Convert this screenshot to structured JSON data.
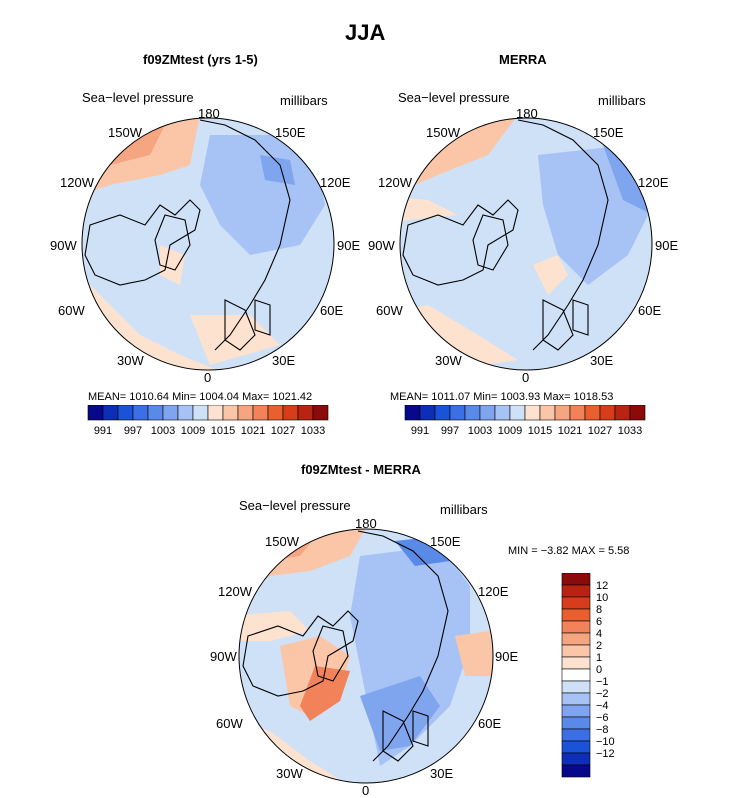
{
  "page_title": "JJA",
  "colors": {
    "land": "#000000",
    "ocean_bg": "#cfe1f7",
    "h_cbar": [
      "#08088a",
      "#0d2fb8",
      "#1a52d8",
      "#3b6fe3",
      "#5a8ae8",
      "#7fa5ef",
      "#a7c2f5",
      "#cfe1f7",
      "#fde2cf",
      "#fbc6a8",
      "#f6a581",
      "#f18259",
      "#e8602f",
      "#d73d1a",
      "#b82411",
      "#8b0a0a"
    ],
    "v_cbar": [
      "#8b0a0a",
      "#b82411",
      "#d73d1a",
      "#e8602f",
      "#f18259",
      "#f6a581",
      "#fbc6a8",
      "#fde2cf",
      "#ffffff",
      "#cfe1f7",
      "#a7c2f5",
      "#7fa5ef",
      "#5a8ae8",
      "#3b6fe3",
      "#1a52d8",
      "#0d2fb8",
      "#08088a"
    ]
  },
  "panels": [
    {
      "title": "f09ZMtest (yrs 1-5)",
      "variable": "Sea−level pressure",
      "units": "millibars",
      "lon_labels": {
        "top": "180",
        "tl": "150W",
        "tr": "150E",
        "ul": "120W",
        "ur": "120E",
        "l": "90W",
        "r": "90E",
        "ll": "60W",
        "lr": "60E",
        "bl": "30W",
        "br": "30E",
        "bottom": "0"
      },
      "stats": "MEAN= 1010.64   Min= 1004.04   Max= 1021.42",
      "cbar_labels": [
        "991",
        "997",
        "1003",
        "1009",
        "1015",
        "1021",
        "1027",
        "1033"
      ]
    },
    {
      "title": "MERRA",
      "variable": "Sea−level pressure",
      "units": "millibars",
      "lon_labels": {
        "top": "180",
        "tl": "150W",
        "tr": "150E",
        "ul": "120W",
        "ur": "120E",
        "l": "90W",
        "r": "90E",
        "ll": "60W",
        "lr": "60E",
        "bl": "30W",
        "br": "30E",
        "bottom": "0"
      },
      "stats": "MEAN= 1011.07   Min= 1003.93   Max= 1018.53",
      "cbar_labels": [
        "991",
        "997",
        "1003",
        "1009",
        "1015",
        "1021",
        "1027",
        "1033"
      ]
    },
    {
      "title": "f09ZMtest - MERRA",
      "variable": "Sea−level pressure",
      "units": "millibars",
      "lon_labels": {
        "top": "180",
        "tl": "150W",
        "tr": "150E",
        "ul": "120W",
        "ur": "120E",
        "l": "90W",
        "r": "90E",
        "ll": "60W",
        "lr": "60E",
        "bl": "30W",
        "br": "30E",
        "bottom": "0"
      },
      "stats": "MIN =   −3.82  MAX =    5.58",
      "cbar_labels": [
        "12",
        "10",
        "8",
        "6",
        "4",
        "2",
        "1",
        "0",
        "−1",
        "−2",
        "−4",
        "−6",
        "−8",
        "−10",
        "−12"
      ]
    }
  ],
  "chart_data": [
    {
      "type": "heatmap",
      "title": "f09ZMtest (yrs 1-5)",
      "subtitle": "Sea−level pressure",
      "units": "millibars",
      "projection": "north polar stereographic",
      "mean": 1010.64,
      "min": 1004.04,
      "max": 1021.42,
      "contour_levels": [
        991,
        994,
        997,
        1000,
        1003,
        1006,
        1009,
        1012,
        1015,
        1018,
        1021,
        1024,
        1027,
        1030,
        1033
      ]
    },
    {
      "type": "heatmap",
      "title": "MERRA",
      "subtitle": "Sea−level pressure",
      "units": "millibars",
      "projection": "north polar stereographic",
      "mean": 1011.07,
      "min": 1003.93,
      "max": 1018.53,
      "contour_levels": [
        991,
        994,
        997,
        1000,
        1003,
        1006,
        1009,
        1012,
        1015,
        1018,
        1021,
        1024,
        1027,
        1030,
        1033
      ]
    },
    {
      "type": "heatmap",
      "title": "f09ZMtest - MERRA",
      "subtitle": "Sea−level pressure",
      "units": "millibars",
      "projection": "north polar stereographic",
      "min": -3.82,
      "max": 5.58,
      "contour_levels": [
        -12,
        -10,
        -8,
        -6,
        -4,
        -2,
        -1,
        0,
        1,
        2,
        4,
        6,
        8,
        10,
        12
      ]
    }
  ]
}
